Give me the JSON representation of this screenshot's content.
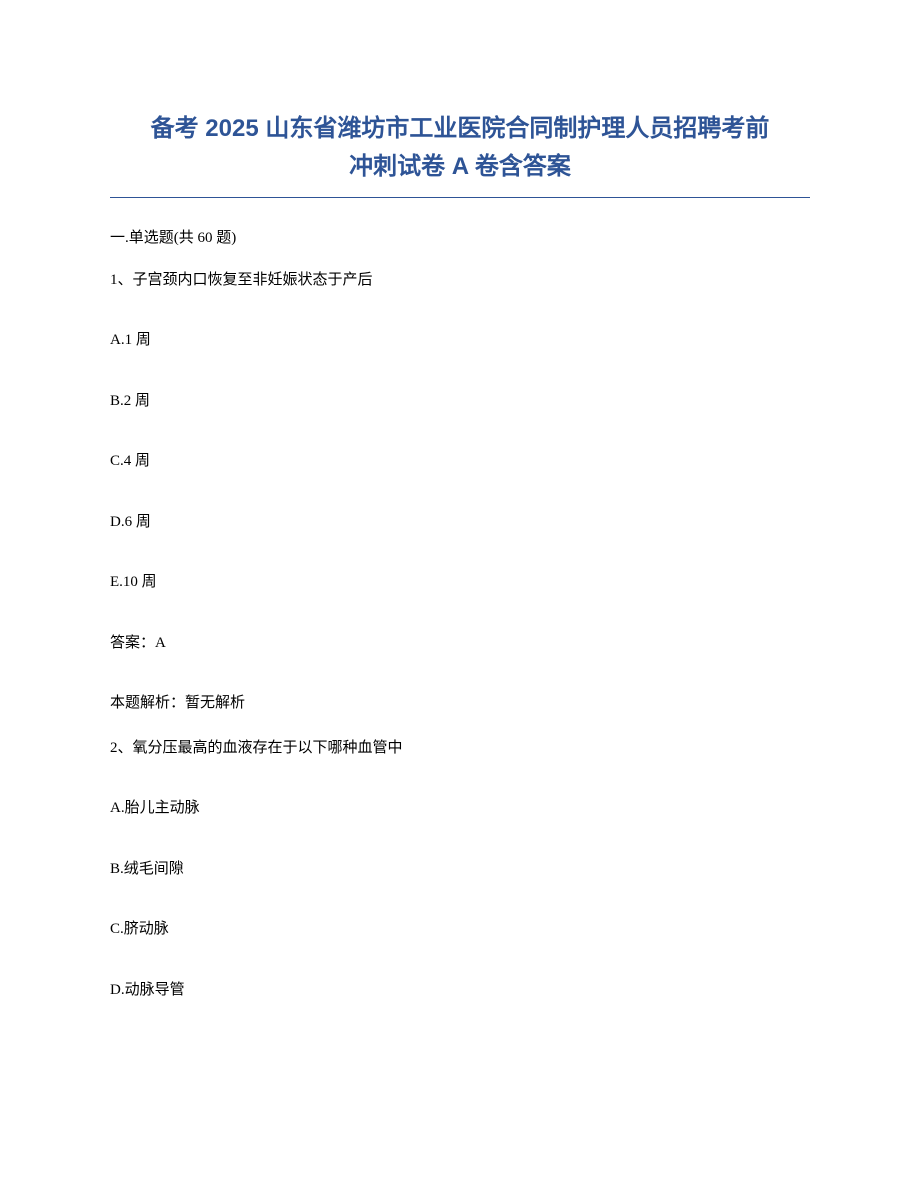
{
  "title": {
    "line1": "备考 2025 山东省潍坊市工业医院合同制护理人员招聘考前",
    "line2": "冲刺试卷 A 卷含答案",
    "color": "#2e5496",
    "fontsize": 24
  },
  "section": {
    "header": "一.单选题(共 60 题)"
  },
  "questions": [
    {
      "number": "1、",
      "text": "子宫颈内口恢复至非妊娠状态于产后",
      "options": [
        "A.1 周",
        "B.2 周",
        "C.4 周",
        "D.6 周",
        "E.10 周"
      ],
      "answer": "答案：A",
      "explanation": "本题解析：暂无解析"
    },
    {
      "number": "2、",
      "text": "氧分压最高的血液存在于以下哪种血管中",
      "options": [
        "A.胎儿主动脉",
        "B.绒毛间隙",
        "C.脐动脉",
        "D.动脉导管"
      ]
    }
  ],
  "colors": {
    "title": "#2e5496",
    "text": "#000000",
    "background": "#ffffff",
    "underline": "#2e5496"
  },
  "typography": {
    "title_fontsize": 24,
    "body_fontsize": 15,
    "title_font": "SimHei",
    "body_font": "SimSun"
  }
}
